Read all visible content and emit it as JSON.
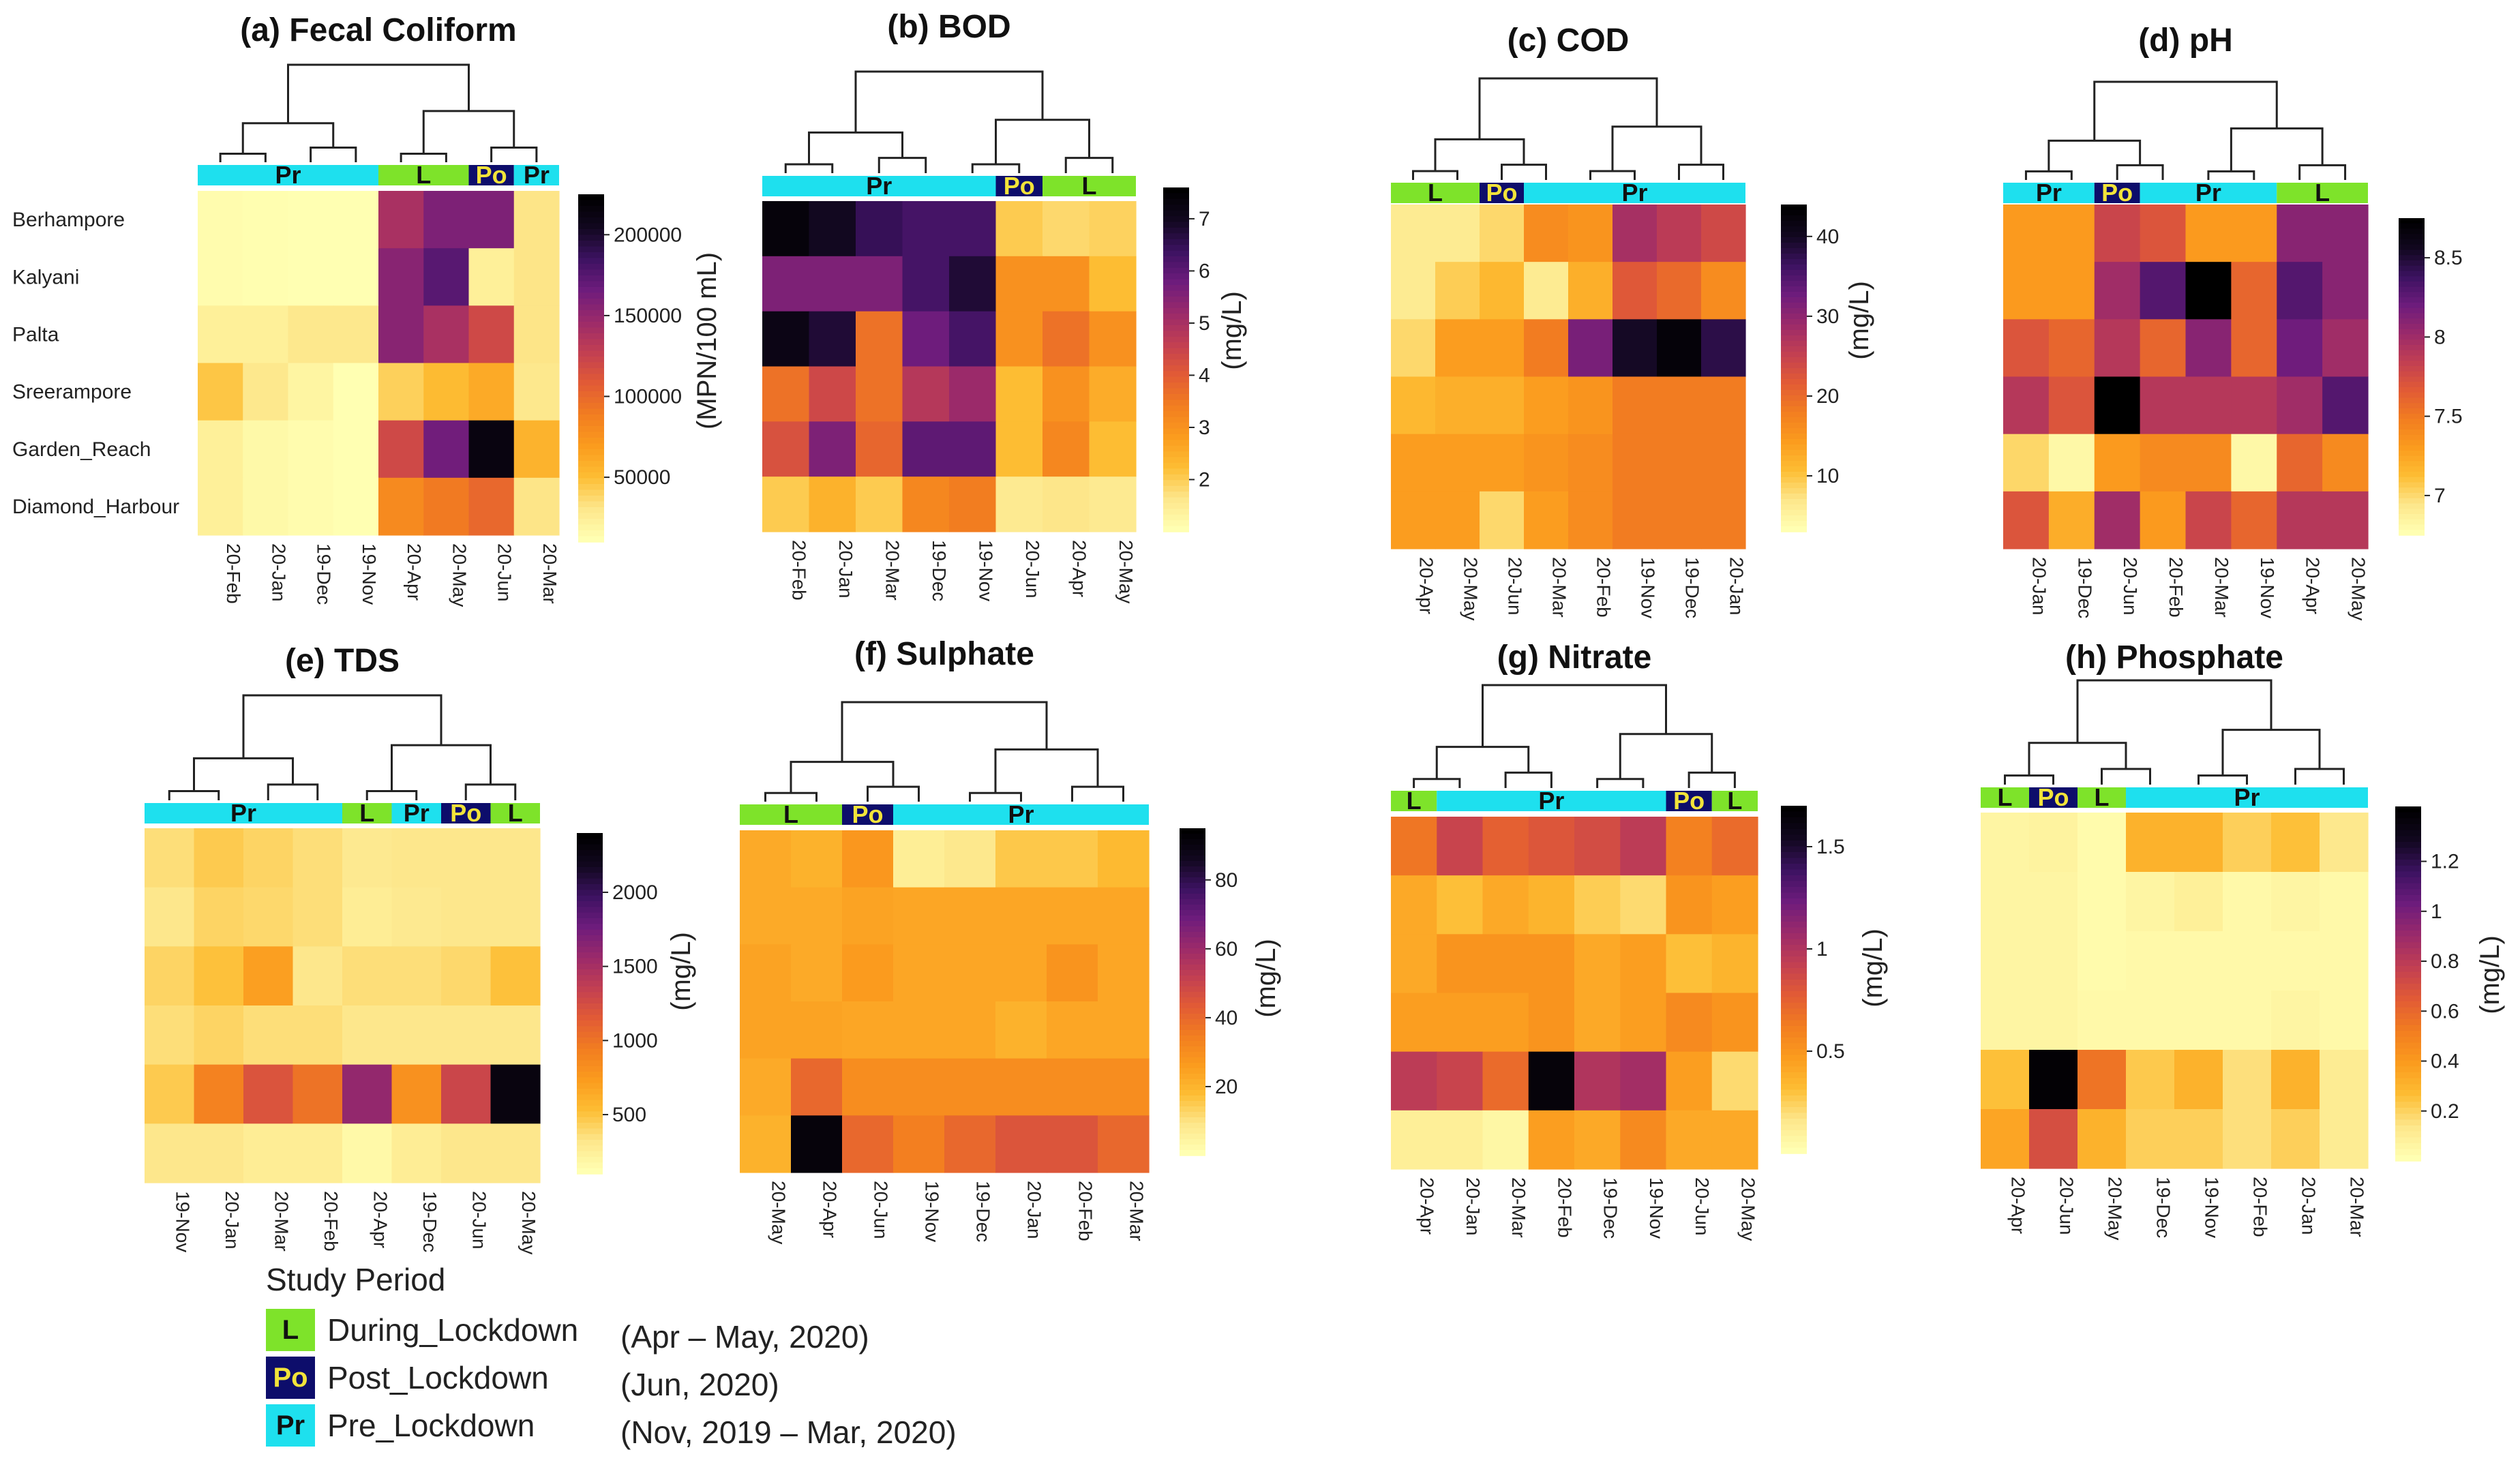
{
  "rows": [
    "Berhampore",
    "Kalyani",
    "Palta",
    "Sreerampore",
    "Garden_Reach",
    "Diamond_Harbour"
  ],
  "group_colors": {
    "L": "#7ee32a",
    "Po": "#0d0d6b",
    "Pr": "#1ee0ee"
  },
  "group_text_colors": {
    "L": "#111111",
    "Po": "#f2e33a",
    "Pr": "#111111"
  },
  "colormap": [
    "#ffffb2",
    "#fde68a",
    "#fdbd33",
    "#fb9b1e",
    "#f27d20",
    "#e25b35",
    "#c23f52",
    "#9b2a6a",
    "#6e1c7c",
    "#3d1262",
    "#120820",
    "#000000"
  ],
  "legend": {
    "title": "Study Period",
    "items": [
      {
        "code": "L",
        "name": "During_Lockdown",
        "range": "(Apr – May, 2020)"
      },
      {
        "code": "Po",
        "name": "Post_Lockdown",
        "range": "(Jun, 2020)"
      },
      {
        "code": "Pr",
        "name": "Pre_Lockdown",
        "range": "(Nov, 2019 – Mar, 2020)"
      }
    ]
  },
  "chart_data": [
    {
      "type": "heatmap",
      "title": "(a) Fecal Coliform",
      "unit": "(MPN/100 mL)",
      "columns": [
        "20-Feb",
        "20-Jan",
        "19-Dec",
        "19-Nov",
        "20-Apr",
        "20-May",
        "20-Jun",
        "20-Mar"
      ],
      "groups": [
        {
          "label": "Pr",
          "code": "Pr",
          "span": 4
        },
        {
          "label": "L",
          "code": "L",
          "span": 2
        },
        {
          "label": "Po",
          "code": "Po",
          "span": 1
        },
        {
          "label": "Pr",
          "code": "Pr",
          "span": 1
        }
      ],
      "vmin": 10000,
      "vmax": 225000,
      "ticks": [
        50000,
        100000,
        150000,
        200000
      ],
      "tick_labels": [
        "50000",
        "100000",
        "150000",
        "200000"
      ],
      "values": [
        [
          12000,
          11000,
          10000,
          10000,
          140000,
          160000,
          160000,
          30000
        ],
        [
          12000,
          11000,
          10000,
          10000,
          155000,
          175000,
          22000,
          30000
        ],
        [
          22000,
          22000,
          28000,
          28000,
          155000,
          140000,
          120000,
          30000
        ],
        [
          45000,
          28000,
          18000,
          10000,
          40000,
          50000,
          60000,
          28000
        ],
        [
          22000,
          15000,
          12000,
          10000,
          120000,
          165000,
          215000,
          55000
        ],
        [
          22000,
          15000,
          12000,
          10000,
          80000,
          90000,
          100000,
          30000
        ]
      ]
    },
    {
      "type": "heatmap",
      "title": "(b) BOD",
      "unit": "(mg/L)",
      "columns": [
        "20-Feb",
        "20-Jan",
        "20-Mar",
        "19-Dec",
        "19-Nov",
        "20-Jun",
        "20-Apr",
        "20-May"
      ],
      "groups": [
        {
          "label": "Pr",
          "code": "Pr",
          "span": 5
        },
        {
          "label": "Po",
          "code": "Po",
          "span": 1
        },
        {
          "label": "L",
          "code": "L",
          "span": 2
        }
      ],
      "vmin": 1,
      "vmax": 7.6,
      "ticks": [
        2,
        3,
        4,
        5,
        6,
        7
      ],
      "tick_labels": [
        "2",
        "3",
        "4",
        "5",
        "6",
        "7"
      ],
      "values": [
        [
          7.4,
          7.0,
          6.5,
          6.3,
          6.3,
          2.0,
          1.8,
          1.9
        ],
        [
          5.6,
          5.6,
          5.6,
          6.3,
          6.8,
          3.0,
          3.0,
          2.2
        ],
        [
          7.2,
          6.8,
          3.6,
          5.8,
          6.3,
          3.0,
          3.6,
          3.0
        ],
        [
          3.6,
          4.4,
          3.6,
          4.8,
          5.2,
          2.2,
          3.0,
          2.5
        ],
        [
          4.2,
          5.6,
          3.8,
          6.0,
          6.0,
          2.2,
          3.2,
          2.2
        ],
        [
          2.0,
          2.4,
          2.0,
          3.2,
          3.4,
          1.5,
          1.6,
          1.5
        ]
      ]
    },
    {
      "type": "heatmap",
      "title": "(c) COD",
      "unit": "(mg/L)",
      "columns": [
        "20-Apr",
        "20-May",
        "20-Jun",
        "20-Mar",
        "20-Feb",
        "19-Nov",
        "19-Dec",
        "20-Jan"
      ],
      "groups": [
        {
          "label": "L",
          "code": "L",
          "span": 2
        },
        {
          "label": "Po",
          "code": "Po",
          "span": 1
        },
        {
          "label": "Pr",
          "code": "Pr",
          "span": 5
        }
      ],
      "vmin": 3,
      "vmax": 44,
      "ticks": [
        10,
        20,
        30,
        40
      ],
      "tick_labels": [
        "10",
        "20",
        "30",
        "40"
      ],
      "values": [
        [
          6,
          6,
          8,
          16,
          15,
          28,
          26,
          24
        ],
        [
          6,
          9,
          11,
          6,
          12,
          22,
          20,
          16
        ],
        [
          8,
          14,
          14,
          18,
          32,
          40,
          43,
          38
        ],
        [
          11,
          12,
          12,
          14,
          15,
          18,
          18,
          18
        ],
        [
          14,
          14,
          14,
          15,
          16,
          18,
          18,
          18
        ],
        [
          14,
          14,
          8,
          14,
          16,
          18,
          18,
          18
        ]
      ]
    },
    {
      "type": "heatmap",
      "title": "(d) pH",
      "unit": "",
      "columns": [
        "20-Jan",
        "19-Dec",
        "20-Jun",
        "20-Feb",
        "20-Mar",
        "19-Nov",
        "20-Apr",
        "20-May"
      ],
      "groups": [
        {
          "label": "Pr",
          "code": "Pr",
          "span": 2
        },
        {
          "label": "Po",
          "code": "Po",
          "span": 1
        },
        {
          "label": "Pr",
          "code": "Pr",
          "span": 3
        },
        {
          "label": "L",
          "code": "L",
          "span": 2
        }
      ],
      "vmin": 6.75,
      "vmax": 8.75,
      "ticks": [
        7,
        7.5,
        8,
        8.5
      ],
      "tick_labels": [
        "7",
        "7.5",
        "8",
        "8.5"
      ],
      "values": [
        [
          7.3,
          7.3,
          7.8,
          7.7,
          7.3,
          7.3,
          8.1,
          8.1
        ],
        [
          7.3,
          7.3,
          8.0,
          8.3,
          8.8,
          7.6,
          8.3,
          8.1
        ],
        [
          7.7,
          7.6,
          7.9,
          7.6,
          8.1,
          7.6,
          8.2,
          8.0
        ],
        [
          7.9,
          7.7,
          8.8,
          7.9,
          7.9,
          7.9,
          8.0,
          8.3
        ],
        [
          7.0,
          6.8,
          7.3,
          7.4,
          7.4,
          6.8,
          7.6,
          7.4
        ],
        [
          7.7,
          7.2,
          8.0,
          7.3,
          7.8,
          7.6,
          7.9,
          7.9
        ]
      ]
    },
    {
      "type": "heatmap",
      "title": "(e) TDS",
      "unit": "(mg/L)",
      "columns": [
        "19-Nov",
        "20-Jan",
        "20-Mar",
        "20-Feb",
        "20-Apr",
        "19-Dec",
        "20-Jun",
        "20-May"
      ],
      "groups": [
        {
          "label": "Pr",
          "code": "Pr",
          "span": 4
        },
        {
          "label": "L",
          "code": "L",
          "span": 1
        },
        {
          "label": "Pr",
          "code": "Pr",
          "span": 1
        },
        {
          "label": "Po",
          "code": "Po",
          "span": 1
        },
        {
          "label": "L",
          "code": "L",
          "span": 1
        }
      ],
      "vmin": 100,
      "vmax": 2400,
      "ticks": [
        500,
        1000,
        1500,
        2000
      ],
      "tick_labels": [
        "500",
        "1000",
        "1500",
        "2000"
      ],
      "values": [
        [
          350,
          450,
          400,
          350,
          280,
          300,
          300,
          300
        ],
        [
          300,
          400,
          380,
          350,
          250,
          280,
          300,
          300
        ],
        [
          400,
          500,
          700,
          300,
          350,
          350,
          380,
          500
        ],
        [
          350,
          400,
          350,
          350,
          300,
          300,
          300,
          300
        ],
        [
          450,
          900,
          1200,
          1000,
          1600,
          800,
          1300,
          2300
        ],
        [
          300,
          300,
          250,
          250,
          150,
          250,
          300,
          300
        ]
      ]
    },
    {
      "type": "heatmap",
      "title": "(f) Sulphate",
      "unit": "(mg/L)",
      "columns": [
        "20-May",
        "20-Apr",
        "20-Jun",
        "19-Nov",
        "19-Dec",
        "20-Jan",
        "20-Feb",
        "20-Mar"
      ],
      "groups": [
        {
          "label": "L",
          "code": "L",
          "span": 2
        },
        {
          "label": "Po",
          "code": "Po",
          "span": 1
        },
        {
          "label": "Pr",
          "code": "Pr",
          "span": 5
        }
      ],
      "vmin": 0,
      "vmax": 95,
      "ticks": [
        20,
        40,
        60,
        80
      ],
      "tick_labels": [
        "20",
        "40",
        "60",
        "80"
      ],
      "values": [
        [
          22,
          20,
          27,
          6,
          8,
          15,
          15,
          18
        ],
        [
          22,
          22,
          24,
          23,
          23,
          23,
          23,
          23
        ],
        [
          24,
          22,
          26,
          23,
          23,
          23,
          28,
          23
        ],
        [
          24,
          24,
          23,
          23,
          23,
          20,
          23,
          23
        ],
        [
          22,
          40,
          30,
          30,
          30,
          30,
          30,
          30
        ],
        [
          20,
          92,
          40,
          34,
          40,
          45,
          45,
          40
        ]
      ]
    },
    {
      "type": "heatmap",
      "title": "(g) Nitrate",
      "unit": "(mg/L)",
      "columns": [
        "20-Apr",
        "20-Jan",
        "20-Mar",
        "20-Feb",
        "19-Dec",
        "19-Nov",
        "20-Jun",
        "20-May"
      ],
      "groups": [
        {
          "label": "L",
          "code": "L",
          "span": 1
        },
        {
          "label": "Pr",
          "code": "Pr",
          "span": 5
        },
        {
          "label": "Po",
          "code": "Po",
          "span": 1
        },
        {
          "label": "L",
          "code": "L",
          "span": 1
        }
      ],
      "vmin": 0,
      "vmax": 1.7,
      "ticks": [
        0.5,
        1,
        1.5
      ],
      "tick_labels": [
        "0.5",
        "1",
        "1.5"
      ],
      "values": [
        [
          0.65,
          0.9,
          0.75,
          0.8,
          0.85,
          0.95,
          0.6,
          0.7
        ],
        [
          0.4,
          0.3,
          0.4,
          0.35,
          0.25,
          0.2,
          0.5,
          0.45
        ],
        [
          0.4,
          0.5,
          0.5,
          0.5,
          0.4,
          0.45,
          0.3,
          0.35
        ],
        [
          0.45,
          0.45,
          0.45,
          0.5,
          0.4,
          0.45,
          0.55,
          0.5
        ],
        [
          0.95,
          0.9,
          0.7,
          1.65,
          1.0,
          1.05,
          0.45,
          0.2
        ],
        [
          0.1,
          0.1,
          0.05,
          0.45,
          0.4,
          0.55,
          0.4,
          0.4
        ]
      ]
    },
    {
      "type": "heatmap",
      "title": "(h) Phosphate",
      "unit": "(mg/L)",
      "columns": [
        "20-Apr",
        "20-Jun",
        "20-May",
        "19-Dec",
        "19-Nov",
        "20-Feb",
        "20-Jan",
        "20-Mar"
      ],
      "groups": [
        {
          "label": "L",
          "code": "L",
          "span": 1
        },
        {
          "label": "Po",
          "code": "Po",
          "span": 1
        },
        {
          "label": "L",
          "code": "L",
          "span": 1
        },
        {
          "label": "Pr",
          "code": "Pr",
          "span": 5
        }
      ],
      "vmin": 0,
      "vmax": 1.42,
      "ticks": [
        0.2,
        0.4,
        0.6,
        0.8,
        1,
        1.2
      ],
      "tick_labels": [
        "0.2",
        "0.4",
        "0.6",
        "0.8",
        "1",
        "1.2"
      ],
      "values": [
        [
          0.05,
          0.06,
          0.02,
          0.3,
          0.3,
          0.2,
          0.25,
          0.12
        ],
        [
          0.05,
          0.05,
          0.02,
          0.05,
          0.08,
          0.03,
          0.05,
          0.03
        ],
        [
          0.05,
          0.05,
          0.02,
          0.03,
          0.03,
          0.03,
          0.03,
          0.03
        ],
        [
          0.05,
          0.05,
          0.03,
          0.03,
          0.03,
          0.03,
          0.05,
          0.03
        ],
        [
          0.25,
          1.4,
          0.55,
          0.22,
          0.3,
          0.15,
          0.3,
          0.1
        ],
        [
          0.35,
          0.7,
          0.3,
          0.2,
          0.2,
          0.15,
          0.2,
          0.1
        ]
      ]
    }
  ]
}
